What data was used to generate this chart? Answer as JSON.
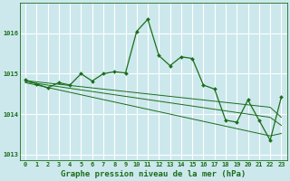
{
  "title": "Graphe pression niveau de la mer (hPa)",
  "background_color": "#cce8ed",
  "grid_color": "#ffffff",
  "line_color": "#1a6e1a",
  "x_labels": [
    "0",
    "1",
    "2",
    "3",
    "4",
    "5",
    "6",
    "7",
    "8",
    "9",
    "10",
    "11",
    "12",
    "13",
    "14",
    "15",
    "16",
    "17",
    "18",
    "19",
    "20",
    "21",
    "22",
    "23"
  ],
  "main_data": [
    1014.85,
    1014.75,
    1014.65,
    1014.78,
    1014.72,
    1015.0,
    1014.82,
    1015.0,
    1015.05,
    1015.02,
    1016.05,
    1016.35,
    1015.45,
    1015.2,
    1015.42,
    1015.38,
    1014.72,
    1014.62,
    1013.85,
    1013.8,
    1014.35,
    1013.85,
    1013.35,
    1014.42
  ],
  "upper_band": [
    1014.83,
    1014.8,
    1014.77,
    1014.74,
    1014.71,
    1014.68,
    1014.65,
    1014.62,
    1014.59,
    1014.56,
    1014.53,
    1014.5,
    1014.47,
    1014.44,
    1014.41,
    1014.38,
    1014.35,
    1014.32,
    1014.29,
    1014.26,
    1014.23,
    1014.2,
    1014.17,
    1013.92
  ],
  "mid_band": [
    1014.8,
    1014.76,
    1014.72,
    1014.68,
    1014.64,
    1014.6,
    1014.56,
    1014.52,
    1014.48,
    1014.44,
    1014.4,
    1014.36,
    1014.32,
    1014.28,
    1014.24,
    1014.2,
    1014.16,
    1014.12,
    1014.08,
    1014.04,
    1014.0,
    1013.96,
    1013.92,
    1013.72
  ],
  "lower_band": [
    1014.78,
    1014.72,
    1014.66,
    1014.6,
    1014.54,
    1014.48,
    1014.42,
    1014.36,
    1014.3,
    1014.24,
    1014.18,
    1014.12,
    1014.06,
    1014.0,
    1013.94,
    1013.88,
    1013.82,
    1013.76,
    1013.7,
    1013.64,
    1013.58,
    1013.52,
    1013.46,
    1013.52
  ],
  "ylim": [
    1012.85,
    1016.75
  ],
  "yticks": [
    1013,
    1014,
    1015,
    1016
  ],
  "title_fontsize": 6.5,
  "tick_fontsize": 5.0
}
